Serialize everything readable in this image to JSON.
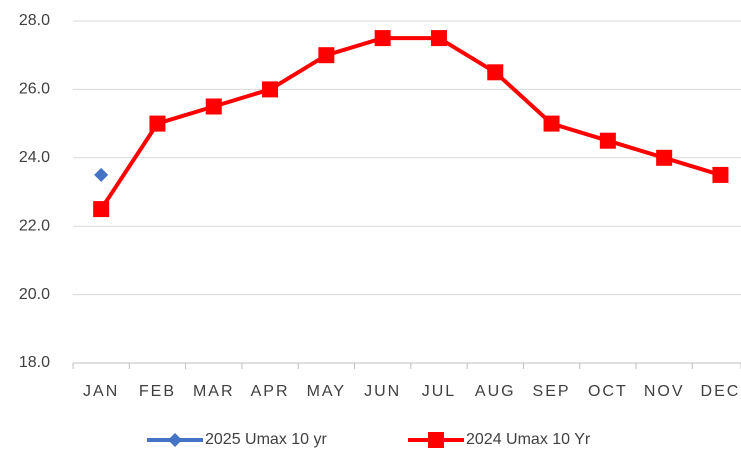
{
  "chart_data": {
    "type": "line",
    "categories": [
      "JAN",
      "FEB",
      "MAR",
      "APR",
      "MAY",
      "JUN",
      "JUL",
      "AUG",
      "SEP",
      "OCT",
      "NOV",
      "DEC"
    ],
    "series": [
      {
        "name": "2025 Umax 10 yr",
        "color": "#4472c4",
        "marker": "diamond",
        "values": [
          23.5,
          null,
          null,
          null,
          null,
          null,
          null,
          null,
          null,
          null,
          null,
          null
        ]
      },
      {
        "name": "2024 Umax 10 Yr",
        "color": "#ff0000",
        "marker": "square",
        "values": [
          22.5,
          25,
          25.5,
          26,
          27,
          27.5,
          27.5,
          26.5,
          25,
          24.5,
          24,
          23.5
        ]
      }
    ],
    "ylim": [
      18,
      28
    ],
    "yticks": [
      {
        "value": 18,
        "label": "18.0"
      },
      {
        "value": 20,
        "label": "20.0"
      },
      {
        "value": 22,
        "label": "22.0"
      },
      {
        "value": 24,
        "label": "24.0"
      },
      {
        "value": 26,
        "label": "26.0"
      },
      {
        "value": 28,
        "label": "28.0"
      }
    ],
    "grid": true,
    "legend": "bottom"
  }
}
